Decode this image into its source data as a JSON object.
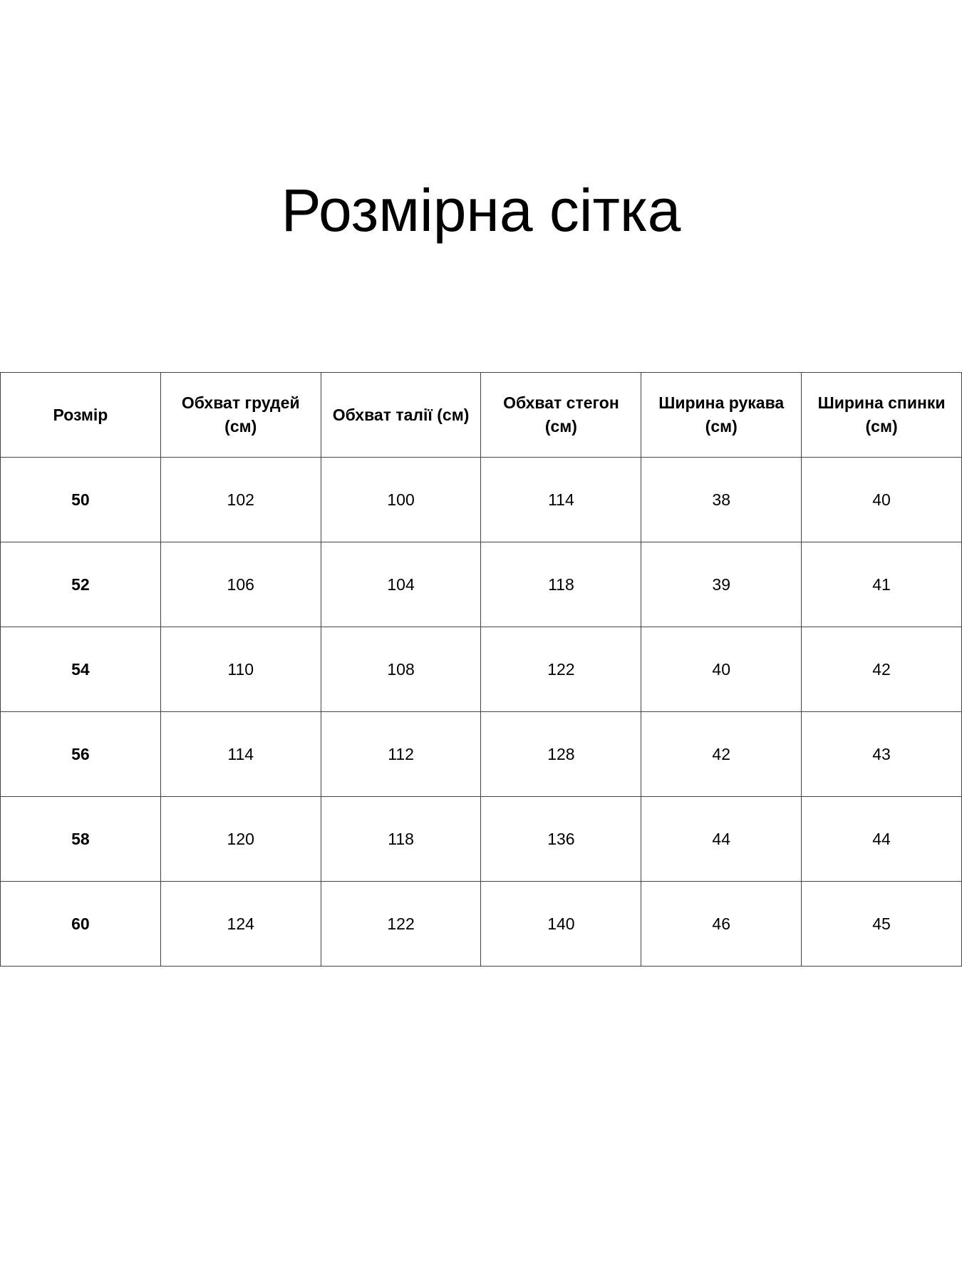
{
  "title": "Розмірна сітка",
  "table": {
    "headers": [
      "Розмір",
      "Обхват грудей (см)",
      "Обхват талії (см)",
      "Обхват стегон (см)",
      "Ширина рукава (см)",
      "Ширина спинки (см)"
    ],
    "rows": [
      [
        "50",
        "102",
        "100",
        "114",
        "38",
        "40"
      ],
      [
        "52",
        "106",
        "104",
        "118",
        "39",
        "41"
      ],
      [
        "54",
        "110",
        "108",
        "122",
        "40",
        "42"
      ],
      [
        "56",
        "114",
        "112",
        "128",
        "42",
        "43"
      ],
      [
        "58",
        "120",
        "118",
        "136",
        "44",
        "44"
      ],
      [
        "60",
        "124",
        "122",
        "140",
        "46",
        "45"
      ]
    ]
  }
}
